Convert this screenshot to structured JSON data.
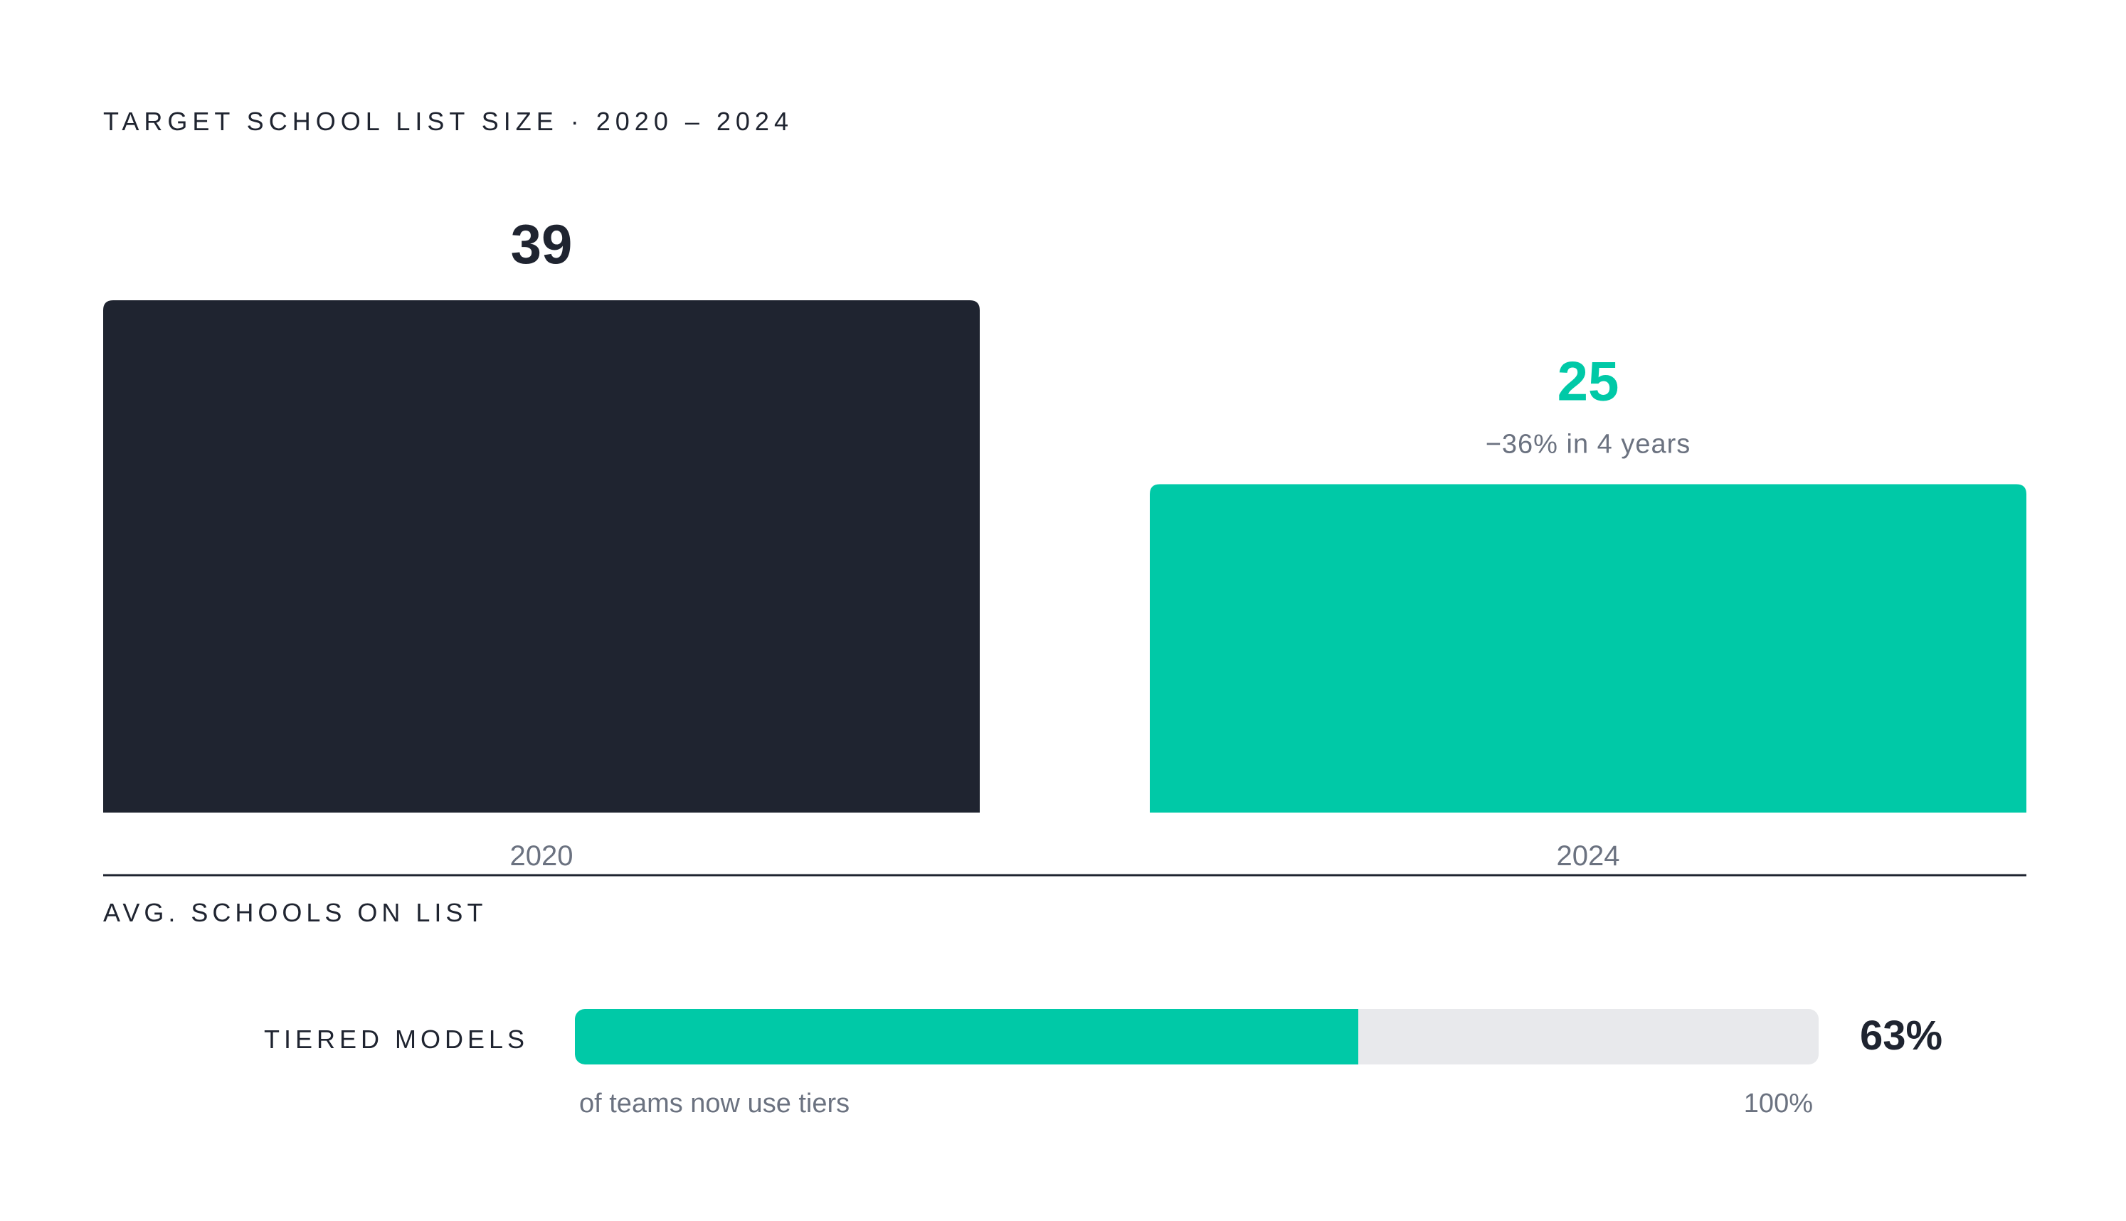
{
  "chart_data": {
    "type": "bar",
    "title": "TARGET SCHOOL LIST SIZE · 2020 – 2024",
    "categories": [
      "2020",
      "2024"
    ],
    "values": [
      39,
      25
    ],
    "value_labels": [
      "39",
      "25"
    ],
    "annotation": "−36% in 4 years",
    "xlabel": "AVG. SCHOOLS ON LIST",
    "ylabel": "",
    "ylim": [
      0,
      39
    ],
    "grid": false,
    "legend": "none",
    "colors": [
      "#1f2430",
      "#00c9a7"
    ]
  },
  "metric": {
    "label": "TIERED MODELS",
    "value": 63,
    "value_label": "63%",
    "caption": "of teams now use tiers",
    "max_label": "100%",
    "fill_color": "#00c9a7",
    "track_color": "#e8e9ec"
  },
  "colors": {
    "ink": "#1f2430",
    "accent": "#00c9a7",
    "muted": "#6b7280"
  }
}
